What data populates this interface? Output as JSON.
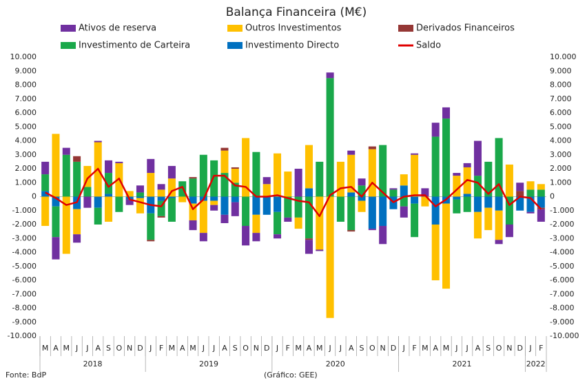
{
  "chart_data": {
    "type": "bar",
    "stacked": true,
    "title": "Balança Financeira (M€)",
    "categories": [
      "M",
      "A",
      "M",
      "J",
      "J",
      "A",
      "S",
      "O",
      "N",
      "D",
      "J",
      "F",
      "M",
      "A",
      "M",
      "J",
      "J",
      "A",
      "S",
      "O",
      "N",
      "D",
      "J",
      "F",
      "M",
      "A",
      "M",
      "J",
      "J",
      "A",
      "S",
      "O",
      "N",
      "D",
      "J",
      "F",
      "M",
      "A",
      "M",
      "J",
      "J",
      "A",
      "S",
      "O",
      "N",
      "D",
      "J",
      "F"
    ],
    "year_groups": [
      {
        "label": "2018",
        "months": 10
      },
      {
        "label": "2019",
        "months": 12
      },
      {
        "label": "2020",
        "months": 12
      },
      {
        "label": "2021",
        "months": 12
      },
      {
        "label": "2022",
        "months": 2
      }
    ],
    "series": [
      {
        "name": "Ativos de reserva",
        "color": "#7030a0",
        "values": [
          900,
          -1600,
          500,
          -600,
          -800,
          100,
          900,
          100,
          -400,
          500,
          1000,
          400,
          900,
          0,
          -700,
          -600,
          -400,
          -600,
          -1000,
          -1400,
          -600,
          500,
          -300,
          -300,
          2000,
          -1000,
          -100,
          400,
          0,
          300,
          500,
          -100,
          -1300,
          100,
          -800,
          100,
          600,
          1000,
          800,
          200,
          300,
          2500,
          0,
          -300,
          -900,
          600,
          -100,
          -900
        ]
      },
      {
        "name": "Outros Investimentos",
        "color": "#ffc000",
        "values": [
          -2100,
          4500,
          -4100,
          -1800,
          1500,
          3900,
          -1800,
          2400,
          400,
          -1100,
          1700,
          500,
          1300,
          -400,
          -1200,
          -2300,
          -300,
          1600,
          1000,
          4200,
          -1300,
          900,
          3100,
          1800,
          -800,
          3100,
          -3800,
          -8700,
          2500,
          2700,
          -800,
          3400,
          0,
          0,
          800,
          3000,
          -700,
          -4000,
          -6100,
          1500,
          1900,
          -1900,
          -1600,
          -2100,
          2300,
          0,
          600,
          400
        ]
      },
      {
        "name": "Derivados Financeiros",
        "color": "#953735",
        "values": [
          0,
          0,
          0,
          400,
          0,
          0,
          0,
          0,
          0,
          0,
          -100,
          -100,
          0,
          0,
          100,
          0,
          0,
          200,
          100,
          0,
          0,
          0,
          0,
          0,
          0,
          -100,
          0,
          0,
          0,
          -100,
          0,
          200,
          0,
          0,
          0,
          0,
          0,
          0,
          0,
          0,
          0,
          0,
          0,
          0,
          0,
          400,
          0,
          -100
        ]
      },
      {
        "name": "Investimento de Carteira",
        "color": "#1aa84a",
        "values": [
          1200,
          -2200,
          3000,
          2500,
          700,
          -1200,
          1500,
          -1100,
          0,
          300,
          -1900,
          -1100,
          -1700,
          1100,
          1300,
          3000,
          2600,
          1700,
          1000,
          -2100,
          3200,
          0,
          -1600,
          -1500,
          -1500,
          -3000,
          2500,
          8500,
          -1800,
          -2400,
          800,
          0,
          3700,
          500,
          -700,
          -2400,
          0,
          4300,
          5600,
          -1000,
          -1100,
          1500,
          2500,
          4200,
          -2000,
          0,
          500,
          500
        ]
      },
      {
        "name": "Investimento Directo",
        "color": "#0070c0",
        "values": [
          400,
          -700,
          0,
          -900,
          0,
          -800,
          200,
          0,
          -200,
          -100,
          -1200,
          -300,
          -100,
          0,
          -500,
          -300,
          -300,
          -1300,
          -400,
          0,
          -1300,
          -1300,
          -1100,
          0,
          0,
          600,
          0,
          0,
          0,
          300,
          -300,
          -2300,
          -2100,
          -900,
          800,
          -500,
          0,
          -2000,
          -500,
          -200,
          200,
          -1100,
          -800,
          -1000,
          0,
          -1000,
          -1100,
          -800
        ]
      },
      {
        "name": "Saldo",
        "color": "#e00000",
        "type": "line",
        "values": [
          300,
          -100,
          -600,
          -400,
          1300,
          2000,
          700,
          1300,
          -200,
          -400,
          -600,
          -700,
          400,
          700,
          -900,
          -200,
          1500,
          1500,
          800,
          700,
          0,
          0,
          100,
          -100,
          -300,
          -400,
          -1400,
          100,
          600,
          700,
          0,
          1000,
          300,
          -400,
          0,
          100,
          100,
          -700,
          -200,
          500,
          1200,
          1000,
          200,
          900,
          -600,
          0,
          -100,
          -900
        ]
      }
    ],
    "ylim": [
      -10000,
      10000
    ],
    "yticks": [
      {
        "value": -10000,
        "label": "-10.000"
      },
      {
        "value": -9000,
        "label": "-9.000"
      },
      {
        "value": -8000,
        "label": "-8.000"
      },
      {
        "value": -7000,
        "label": "-7.000"
      },
      {
        "value": -6000,
        "label": "-6.000"
      },
      {
        "value": -5000,
        "label": "-5.000"
      },
      {
        "value": -4000,
        "label": "-4.000"
      },
      {
        "value": -3000,
        "label": "-3.000"
      },
      {
        "value": -2000,
        "label": "-2.000"
      },
      {
        "value": -1000,
        "label": "-1.000"
      },
      0,
      {
        "value": 1000,
        "label": "1.000"
      },
      {
        "value": 2000,
        "label": "2.000"
      },
      {
        "value": 3000,
        "label": "3.000"
      },
      {
        "value": 4000,
        "label": "4.000"
      },
      {
        "value": 5000,
        "label": "5.000"
      },
      {
        "value": 6000,
        "label": "6.000"
      },
      {
        "value": 7000,
        "label": "7.000"
      },
      {
        "value": 8000,
        "label": "8.000"
      },
      {
        "value": 9000,
        "label": "9.000"
      },
      {
        "value": 10000,
        "label": "10.000"
      }
    ],
    "y2lim": [
      -10000,
      10000
    ],
    "y2ticks": [
      {
        "value": -10000,
        "label": "-10.000"
      },
      {
        "value": -9000,
        "label": "-9.000"
      },
      {
        "value": -8000,
        "label": "-8.000"
      },
      {
        "value": -7000,
        "label": "-7.000"
      },
      {
        "value": -6000,
        "label": "-6.000"
      },
      {
        "value": -5000,
        "label": "-5.000"
      },
      {
        "value": -4000,
        "label": "-4.000"
      },
      {
        "value": -3000,
        "label": "-3.000"
      },
      {
        "value": -2000,
        "label": "-2.000"
      },
      {
        "value": -1000,
        "label": "-1.000"
      },
      0,
      {
        "value": 1000,
        "label": "1.000"
      },
      {
        "value": 2000,
        "label": "2.000"
      },
      {
        "value": 3000,
        "label": "3.000"
      },
      {
        "value": 4000,
        "label": "4.000"
      },
      {
        "value": 5000,
        "label": "5.000"
      },
      {
        "value": 6000,
        "label": "6.000"
      },
      {
        "value": 7000,
        "label": "7.000"
      },
      {
        "value": 8000,
        "label": "8.000"
      },
      {
        "value": 9000,
        "label": "9.000"
      },
      {
        "value": 10000,
        "label": "10.000"
      }
    ],
    "stack_order": [
      4,
      3,
      1,
      2,
      0
    ],
    "source": "Fonte: BdP",
    "credit": "(Gráfico: GEE)"
  }
}
